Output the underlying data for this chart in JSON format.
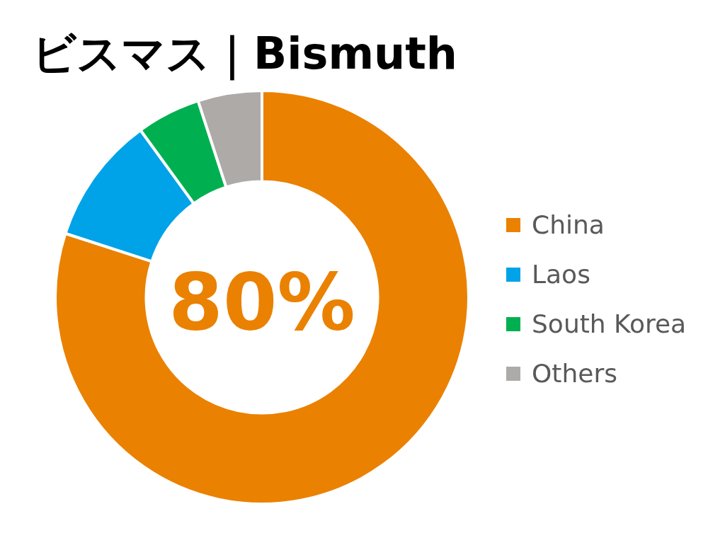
{
  "chart_data": {
    "type": "donut",
    "title": "ビスマス｜Bismuth",
    "categories": [
      "China",
      "Laos",
      "South Korea",
      "Others"
    ],
    "values": [
      80,
      10,
      5,
      5
    ],
    "colors": [
      "#ea8100",
      "#00a2e8",
      "#00b050",
      "#aeaaa8"
    ],
    "value_labels": [
      "80%",
      null,
      null,
      null
    ],
    "legend": "right"
  }
}
